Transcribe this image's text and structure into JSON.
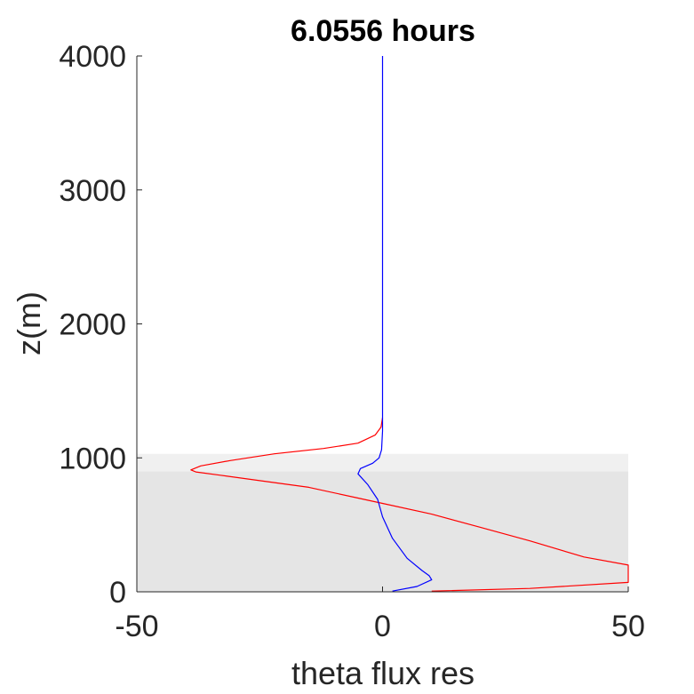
{
  "chart_data": {
    "type": "line",
    "title": "6.0556 hours",
    "xlabel": "theta flux res",
    "ylabel": "z(m)",
    "xlim": [
      -50,
      50
    ],
    "ylim": [
      0,
      4000
    ],
    "xticks": [
      -50,
      0,
      50
    ],
    "yticks": [
      0,
      1000,
      2000,
      3000,
      4000
    ],
    "xtick_labels": [
      "-50",
      "0",
      "50"
    ],
    "ytick_labels": [
      "0",
      "1000",
      "2000",
      "3000",
      "4000"
    ],
    "grid": false,
    "bands": [
      {
        "y0": 0,
        "y1": 900,
        "color": "#e5e5e5"
      },
      {
        "y0": 900,
        "y1": 1030,
        "color": "#f0f0f0"
      }
    ],
    "series": [
      {
        "color": "#ff0000",
        "points": [
          [
            10,
            5
          ],
          [
            30,
            25
          ],
          [
            50,
            70
          ],
          [
            50,
            200
          ],
          [
            41,
            260
          ],
          [
            30,
            380
          ],
          [
            20,
            480
          ],
          [
            10,
            580
          ],
          [
            0,
            660
          ],
          [
            -5,
            700
          ],
          [
            -15,
            780
          ],
          [
            -25,
            830
          ],
          [
            -33,
            870
          ],
          [
            -38,
            895
          ],
          [
            -39,
            910
          ],
          [
            -37,
            940
          ],
          [
            -31,
            980
          ],
          [
            -22,
            1030
          ],
          [
            -12,
            1070
          ],
          [
            -5,
            1110
          ],
          [
            -1.5,
            1170
          ],
          [
            -0.3,
            1230
          ],
          [
            0,
            1300
          ]
        ]
      },
      {
        "color": "#0000ff",
        "points": [
          [
            2,
            5
          ],
          [
            7,
            40
          ],
          [
            10,
            90
          ],
          [
            9.5,
            120
          ],
          [
            8,
            160
          ],
          [
            5,
            250
          ],
          [
            2,
            400
          ],
          [
            0,
            560
          ],
          [
            -1,
            690
          ],
          [
            -3,
            800
          ],
          [
            -5,
            880
          ],
          [
            -4.5,
            920
          ],
          [
            -2,
            960
          ],
          [
            -0.7,
            1000
          ],
          [
            -0.2,
            1060
          ],
          [
            0,
            1200
          ],
          [
            0,
            4000
          ]
        ]
      }
    ]
  }
}
